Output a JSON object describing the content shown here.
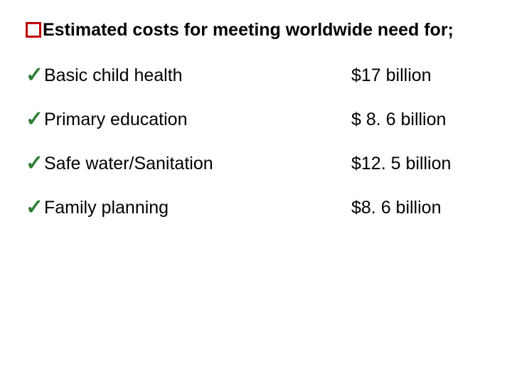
{
  "header": {
    "bullet_border_color": "#c00000",
    "text": "Estimated costs for meeting worldwide need for;",
    "text_color": "#000000",
    "fontsize": 25,
    "font_weight": "bold"
  },
  "check_glyph": "✓",
  "check_color": "#2e7d32",
  "label_color": "#000000",
  "value_color": "#000000",
  "item_fontsize": 25,
  "items": [
    {
      "label": "Basic child health",
      "value": "$17 billion"
    },
    {
      "label": "Primary education",
      "value": "$ 8. 6 billion"
    },
    {
      "label": "Safe water/Sanitation",
      "value": "$12. 5 billion"
    },
    {
      "label": "Family planning",
      "value": " $8. 6 billion"
    }
  ],
  "background_color": "#ffffff"
}
